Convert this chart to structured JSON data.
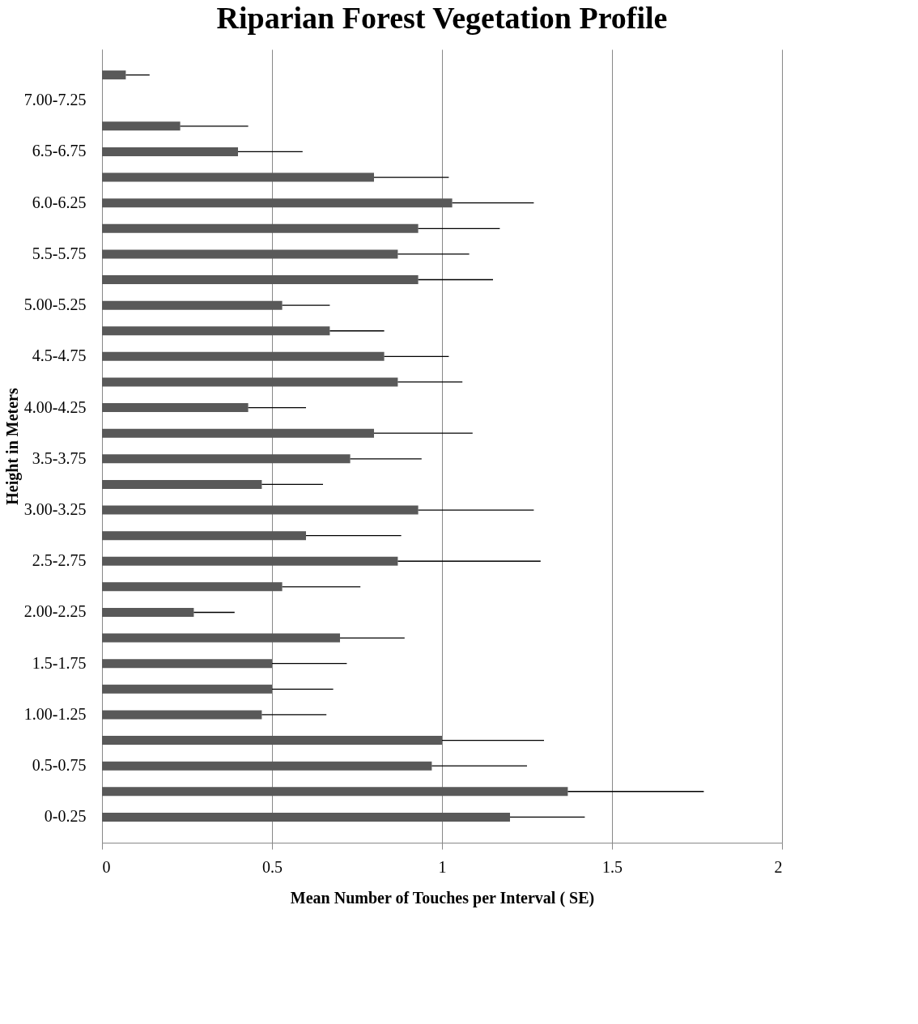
{
  "chart_data": {
    "type": "bar",
    "orientation": "horizontal",
    "title": "Riparian Forest Vegetation Profile",
    "xlabel": "Mean Number of Touches per Interval (   SE)",
    "ylabel": "Height in Meters",
    "categories": [
      null,
      "7.00-7.25",
      null,
      "6.5-6.75",
      null,
      "6.0-6.25",
      null,
      "5.5-5.75",
      null,
      "5.00-5.25",
      null,
      "4.5-4.75",
      null,
      "4.00-4.25",
      null,
      "3.5-3.75",
      null,
      "3.00-3.25",
      null,
      "2.5-2.75",
      null,
      "2.00-2.25",
      null,
      "1.5-1.75",
      null,
      "1.00-1.25",
      null,
      "0.5-0.75",
      null,
      "0-0.25"
    ],
    "values": [
      0.07,
      null,
      0.23,
      0.4,
      0.8,
      1.03,
      0.93,
      0.87,
      0.93,
      0.53,
      0.67,
      0.83,
      0.87,
      0.43,
      0.8,
      0.73,
      0.47,
      0.93,
      0.6,
      0.87,
      0.53,
      0.27,
      0.7,
      0.5,
      0.5,
      0.47,
      1.0,
      0.97,
      1.37,
      1.2
    ],
    "errors": [
      [
        0.07,
        0.14
      ],
      null,
      [
        0.23,
        0.43
      ],
      [
        0.4,
        0.59
      ],
      [
        0.8,
        1.02
      ],
      [
        1.03,
        1.27
      ],
      [
        0.93,
        1.17
      ],
      [
        0.87,
        1.08
      ],
      [
        0.93,
        1.15
      ],
      [
        0.53,
        0.67
      ],
      [
        0.67,
        0.83
      ],
      [
        0.83,
        1.02
      ],
      [
        0.87,
        1.06
      ],
      [
        0.43,
        0.6
      ],
      [
        0.8,
        1.09
      ],
      [
        0.73,
        0.94
      ],
      [
        0.47,
        0.65
      ],
      [
        0.93,
        1.27
      ],
      [
        0.6,
        0.88
      ],
      [
        0.87,
        1.29
      ],
      [
        0.53,
        0.76
      ],
      [
        0.27,
        0.39
      ],
      [
        0.7,
        0.89
      ],
      [
        0.5,
        0.72
      ],
      [
        0.5,
        0.68
      ],
      [
        0.47,
        0.66
      ],
      [
        1.0,
        1.3
      ],
      [
        0.97,
        1.25
      ],
      [
        1.37,
        1.77
      ],
      [
        1.2,
        1.42
      ]
    ],
    "color": "#595959",
    "xlim": [
      0,
      2
    ],
    "xticks": [
      0,
      0.5,
      1,
      1.5,
      2
    ],
    "grid": "x"
  }
}
